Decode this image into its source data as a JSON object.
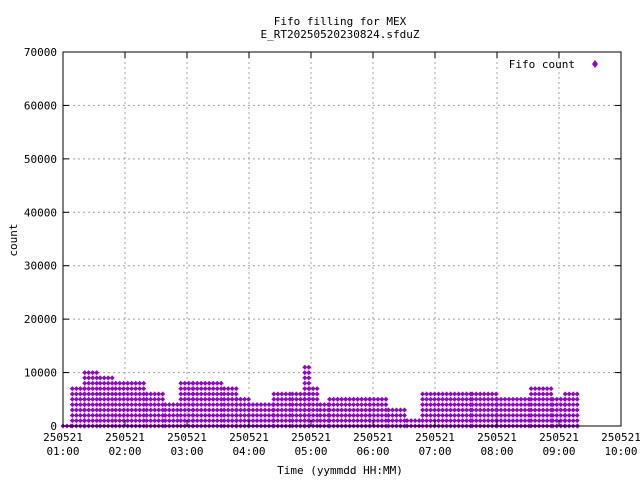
{
  "chart_data": {
    "type": "scatter",
    "title": "Fifo filling for MEX",
    "subtitle": "E_RT20250520230824.sfduZ",
    "xlabel": "Time (yymmdd HH:MM)",
    "ylabel": "count",
    "grid": true,
    "legend_position": "top-right",
    "x_domain_hours": [
      1.0,
      10.0
    ],
    "ylim": [
      0,
      70000
    ],
    "y_ticks": [
      0,
      10000,
      20000,
      30000,
      40000,
      50000,
      60000,
      70000
    ],
    "x_ticks": [
      {
        "hour": 1,
        "date": "250521",
        "time": "01:00"
      },
      {
        "hour": 2,
        "date": "250521",
        "time": "02:00"
      },
      {
        "hour": 3,
        "date": "250521",
        "time": "03:00"
      },
      {
        "hour": 4,
        "date": "250521",
        "time": "04:00"
      },
      {
        "hour": 5,
        "date": "250521",
        "time": "05:00"
      },
      {
        "hour": 6,
        "date": "250521",
        "time": "06:00"
      },
      {
        "hour": 7,
        "date": "250521",
        "time": "07:00"
      },
      {
        "hour": 8,
        "date": "250521",
        "time": "08:00"
      },
      {
        "hour": 9,
        "date": "250521",
        "time": "09:00"
      },
      {
        "hour": 10,
        "date": "250521",
        "time": "10:00"
      }
    ],
    "series": [
      {
        "name": "Fifo count",
        "color": "#9400d3",
        "marker": "diamond",
        "level_step": 1000,
        "envelope": [
          {
            "from": 1.0,
            "to": 1.15,
            "max": 1000
          },
          {
            "from": 1.15,
            "to": 1.35,
            "max": 8500
          },
          {
            "from": 1.35,
            "to": 1.6,
            "max": 10500
          },
          {
            "from": 1.6,
            "to": 1.85,
            "max": 10000
          },
          {
            "from": 1.85,
            "to": 2.35,
            "max": 8800
          },
          {
            "from": 2.35,
            "to": 2.65,
            "max": 6500
          },
          {
            "from": 2.65,
            "to": 2.9,
            "max": 5000
          },
          {
            "from": 2.9,
            "to": 3.1,
            "max": 9000
          },
          {
            "from": 3.1,
            "to": 3.6,
            "max": 8500
          },
          {
            "from": 3.6,
            "to": 3.8,
            "max": 8000
          },
          {
            "from": 3.8,
            "to": 4.0,
            "max": 5500
          },
          {
            "from": 4.0,
            "to": 4.4,
            "max": 4800
          },
          {
            "from": 4.4,
            "to": 4.7,
            "max": 7000
          },
          {
            "from": 4.7,
            "to": 4.9,
            "max": 8000
          },
          {
            "from": 4.9,
            "to": 4.97,
            "max": 11800
          },
          {
            "from": 4.97,
            "to": 5.15,
            "max": 8000
          },
          {
            "from": 5.15,
            "to": 5.3,
            "max": 5000
          },
          {
            "from": 5.3,
            "to": 5.95,
            "max": 6500
          },
          {
            "from": 5.95,
            "to": 6.25,
            "max": 5500
          },
          {
            "from": 6.25,
            "to": 6.55,
            "max": 4500
          },
          {
            "from": 6.55,
            "to": 6.8,
            "max": 1500
          },
          {
            "from": 6.8,
            "to": 7.6,
            "max": 7000
          },
          {
            "from": 7.6,
            "to": 8.0,
            "max": 6500
          },
          {
            "from": 8.0,
            "to": 8.55,
            "max": 6500
          },
          {
            "from": 8.55,
            "to": 8.9,
            "max": 7500
          },
          {
            "from": 8.9,
            "to": 9.1,
            "max": 7000
          },
          {
            "from": 9.1,
            "to": 9.3,
            "max": 6500
          },
          {
            "from": 9.3,
            "to": 9.35,
            "max": 1000
          }
        ]
      }
    ]
  }
}
